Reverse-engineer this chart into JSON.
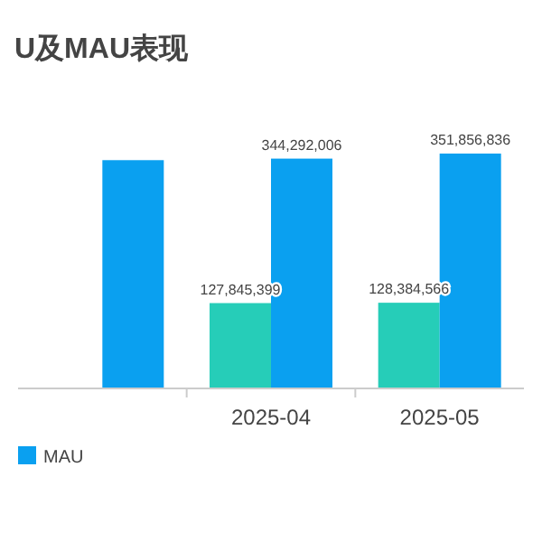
{
  "chart_data": {
    "type": "bar",
    "title": "U及MAU表现",
    "categories": [
      null,
      "2025-04",
      "2025-05"
    ],
    "series": [
      {
        "color": "#26cdb8",
        "values": [
          null,
          127845399,
          128384566
        ],
        "value_labels": [
          null,
          "127,845,399",
          "128,384,566"
        ]
      },
      {
        "name": "MAU",
        "color": "#0aa0f0",
        "values": [
          342000000,
          344292006,
          351856836
        ],
        "value_labels": [
          null,
          "344,292,006",
          "351,856,836"
        ]
      }
    ],
    "legend": "bottom left"
  }
}
